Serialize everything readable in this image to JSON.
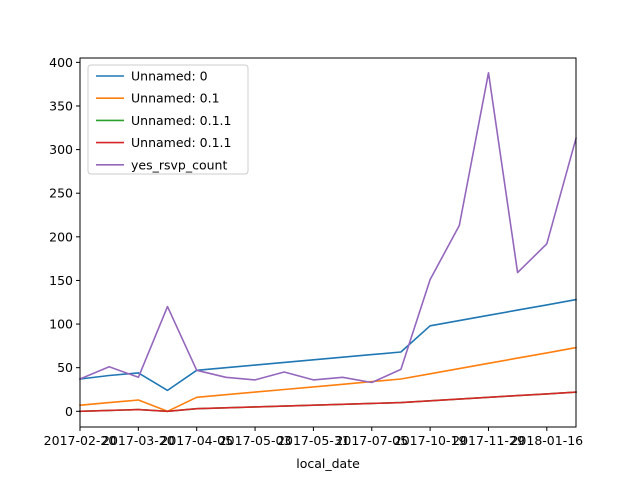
{
  "chart_data": {
    "type": "line",
    "xlabel": "local_date",
    "ylabel": "",
    "title": "",
    "x_tick_labels": [
      "2017-02-20",
      "2017-03-20",
      "2017-04-05",
      "2017-05-03",
      "2017-05-31",
      "2017-07-05",
      "2017-10-19",
      "2017-11-29",
      "2018-01-16"
    ],
    "y_ticks": [
      0,
      50,
      100,
      150,
      200,
      250,
      300,
      350,
      400
    ],
    "ylim": [
      -18,
      405
    ],
    "grid": false,
    "legend_position": "top-left",
    "x_count": 18,
    "series": [
      {
        "name": "Unnamed: 0",
        "color": "#1f77b4",
        "values": [
          37,
          41,
          44,
          24,
          47,
          50,
          53,
          56,
          59,
          62,
          65,
          68,
          98,
          104,
          110,
          116,
          122,
          128
        ]
      },
      {
        "name": "Unnamed: 0.1",
        "color": "#ff7f0e",
        "values": [
          7,
          10,
          13,
          0,
          16,
          19,
          22,
          25,
          28,
          31,
          34,
          37,
          43,
          49,
          55,
          61,
          67,
          73
        ]
      },
      {
        "name": "Unnamed: 0.1.1",
        "color": "#2ca02c",
        "values": [
          0,
          1,
          2,
          0,
          3,
          4,
          5,
          6,
          7,
          8,
          9,
          10,
          12,
          14,
          16,
          18,
          20,
          22
        ]
      },
      {
        "name": "Unnamed: 0.1.1",
        "color": "#d62728",
        "values": [
          0,
          1,
          2,
          0,
          3,
          4,
          5,
          6,
          7,
          8,
          9,
          10,
          12,
          14,
          16,
          18,
          20,
          22
        ]
      },
      {
        "name": "yes_rsvp_count",
        "color": "#9467bd",
        "values": [
          37,
          51,
          39,
          120,
          47,
          39,
          36,
          45,
          36,
          39,
          33,
          48,
          151,
          213,
          388,
          159,
          192,
          313
        ]
      }
    ]
  }
}
